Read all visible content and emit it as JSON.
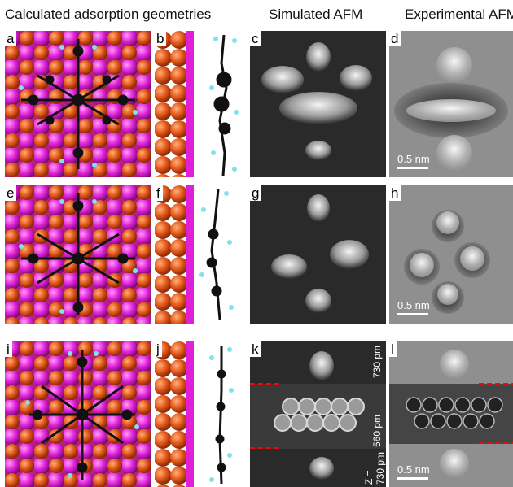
{
  "headers": {
    "calc": "Calculated adsorption geometries",
    "sim": "Simulated AFM",
    "exp": "Experimental AFM"
  },
  "panel_labels": {
    "a": "a",
    "b": "b",
    "c": "c",
    "d": "d",
    "e": "e",
    "f": "f",
    "g": "g",
    "h": "h",
    "i": "i",
    "j": "j",
    "k": "k",
    "l": "l"
  },
  "scalebar": {
    "text": "0.5 nm"
  },
  "height_labels": {
    "top": "730 pm",
    "middle": "560 pm",
    "bottom": "Z =\n730 pm"
  },
  "colors": {
    "substrate_orange": "#e4571a",
    "substrate_magenta": "#e020d8",
    "carbon": "#111111",
    "hydrogen": "#7fe3ec",
    "crop_line": "#e01010"
  }
}
